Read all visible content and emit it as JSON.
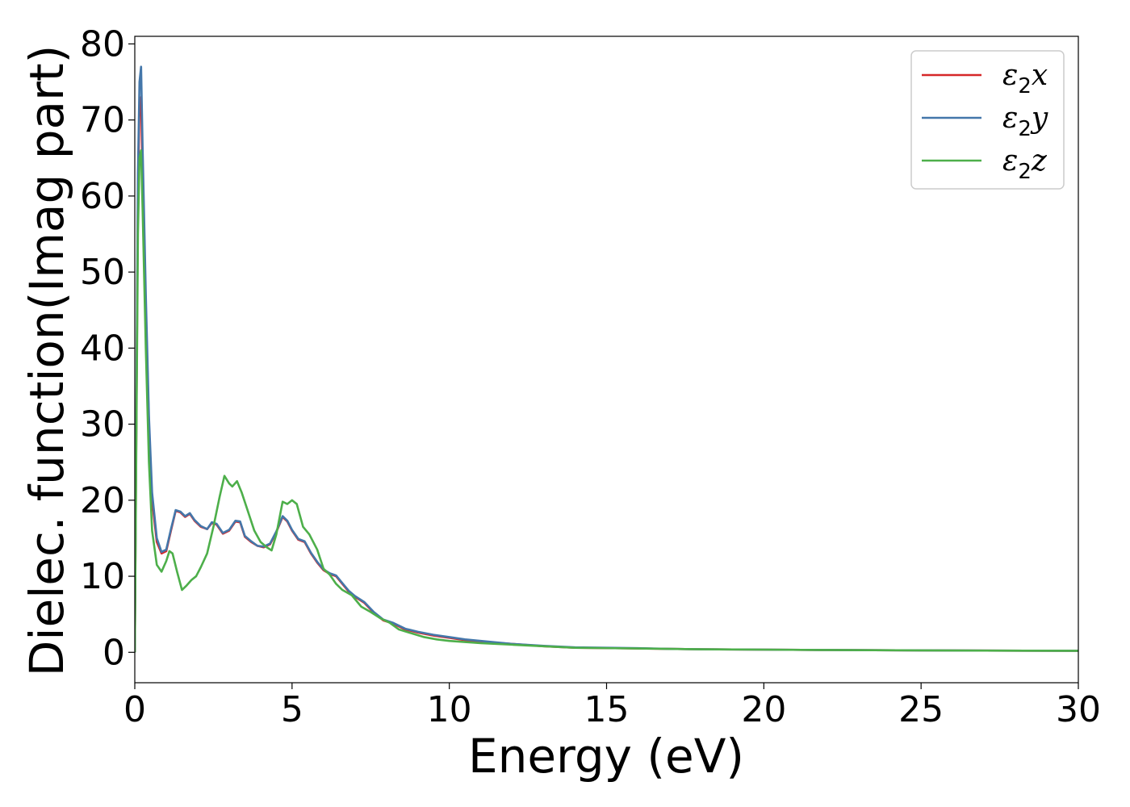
{
  "chart_data": {
    "type": "line",
    "xlabel": "Energy (eV)",
    "ylabel": "Dielec. function(Imag part)",
    "xlim": [
      0,
      30
    ],
    "ylim": [
      -4,
      81
    ],
    "xticks": [
      0,
      5,
      10,
      15,
      20,
      25,
      30
    ],
    "yticks": [
      0,
      10,
      20,
      30,
      40,
      50,
      60,
      70,
      80
    ],
    "grid": false,
    "legend_position": "top-right",
    "series": [
      {
        "name": "ε2x",
        "legend": {
          "base": "ε",
          "sub": "2",
          "var": "x"
        },
        "color": "#d62728",
        "points": [
          [
            0,
            0
          ],
          [
            0.05,
            30
          ],
          [
            0.1,
            60
          ],
          [
            0.15,
            72
          ],
          [
            0.2,
            73
          ],
          [
            0.25,
            62
          ],
          [
            0.35,
            45
          ],
          [
            0.45,
            30
          ],
          [
            0.55,
            20
          ],
          [
            0.7,
            14.5
          ],
          [
            0.85,
            13
          ],
          [
            1.0,
            13.3
          ],
          [
            1.15,
            16
          ],
          [
            1.3,
            18.6
          ],
          [
            1.45,
            18.4
          ],
          [
            1.6,
            17.8
          ],
          [
            1.75,
            18.2
          ],
          [
            1.9,
            17.3
          ],
          [
            2.1,
            16.5
          ],
          [
            2.3,
            16.2
          ],
          [
            2.45,
            17.0
          ],
          [
            2.6,
            16.8
          ],
          [
            2.8,
            15.6
          ],
          [
            3.0,
            16.0
          ],
          [
            3.2,
            17.2
          ],
          [
            3.35,
            17.1
          ],
          [
            3.5,
            15.2
          ],
          [
            3.7,
            14.5
          ],
          [
            3.9,
            14.0
          ],
          [
            4.1,
            13.8
          ],
          [
            4.3,
            14.2
          ],
          [
            4.5,
            15.8
          ],
          [
            4.7,
            17.8
          ],
          [
            4.85,
            17.2
          ],
          [
            5.0,
            16.0
          ],
          [
            5.2,
            14.8
          ],
          [
            5.4,
            14.5
          ],
          [
            5.6,
            13.0
          ],
          [
            5.8,
            11.8
          ],
          [
            6.0,
            10.8
          ],
          [
            6.2,
            10.3
          ],
          [
            6.4,
            10.0
          ],
          [
            6.6,
            9.0
          ],
          [
            6.8,
            8.0
          ],
          [
            7.0,
            7.3
          ],
          [
            7.3,
            6.5
          ],
          [
            7.6,
            5.2
          ],
          [
            7.9,
            4.2
          ],
          [
            8.2,
            3.8
          ],
          [
            8.6,
            3.0
          ],
          [
            9.0,
            2.6
          ],
          [
            9.5,
            2.2
          ],
          [
            10,
            1.9
          ],
          [
            10.5,
            1.6
          ],
          [
            11,
            1.4
          ],
          [
            12,
            1.1
          ],
          [
            13,
            0.8
          ],
          [
            14,
            0.6
          ],
          [
            15,
            0.55
          ],
          [
            16,
            0.5
          ],
          [
            17,
            0.45
          ],
          [
            18,
            0.4
          ],
          [
            20,
            0.35
          ],
          [
            22,
            0.3
          ],
          [
            25,
            0.25
          ],
          [
            27,
            0.22
          ],
          [
            30,
            0.2
          ]
        ]
      },
      {
        "name": "ε2y",
        "legend": {
          "base": "ε",
          "sub": "2",
          "var": "y"
        },
        "color": "#4477aa",
        "points": [
          [
            0,
            0
          ],
          [
            0.05,
            32
          ],
          [
            0.1,
            63
          ],
          [
            0.15,
            75
          ],
          [
            0.2,
            77
          ],
          [
            0.25,
            66
          ],
          [
            0.35,
            47
          ],
          [
            0.45,
            31
          ],
          [
            0.55,
            21
          ],
          [
            0.7,
            15
          ],
          [
            0.85,
            13.2
          ],
          [
            1.0,
            13.5
          ],
          [
            1.15,
            16.2
          ],
          [
            1.3,
            18.7
          ],
          [
            1.45,
            18.5
          ],
          [
            1.6,
            17.9
          ],
          [
            1.75,
            18.3
          ],
          [
            1.9,
            17.4
          ],
          [
            2.1,
            16.6
          ],
          [
            2.3,
            16.2
          ],
          [
            2.45,
            17.1
          ],
          [
            2.6,
            16.9
          ],
          [
            2.8,
            15.7
          ],
          [
            3.0,
            16.1
          ],
          [
            3.2,
            17.3
          ],
          [
            3.35,
            17.2
          ],
          [
            3.5,
            15.3
          ],
          [
            3.7,
            14.6
          ],
          [
            3.9,
            14.0
          ],
          [
            4.1,
            13.9
          ],
          [
            4.3,
            14.3
          ],
          [
            4.5,
            15.9
          ],
          [
            4.7,
            17.9
          ],
          [
            4.85,
            17.3
          ],
          [
            5.0,
            16.1
          ],
          [
            5.2,
            14.9
          ],
          [
            5.4,
            14.6
          ],
          [
            5.6,
            13.1
          ],
          [
            5.8,
            11.9
          ],
          [
            6.0,
            10.9
          ],
          [
            6.2,
            10.4
          ],
          [
            6.4,
            10.1
          ],
          [
            6.6,
            9.1
          ],
          [
            6.8,
            8.1
          ],
          [
            7.0,
            7.4
          ],
          [
            7.3,
            6.6
          ],
          [
            7.6,
            5.3
          ],
          [
            7.9,
            4.3
          ],
          [
            8.2,
            3.9
          ],
          [
            8.6,
            3.1
          ],
          [
            9.0,
            2.7
          ],
          [
            9.5,
            2.3
          ],
          [
            10,
            2.0
          ],
          [
            10.5,
            1.7
          ],
          [
            11,
            1.5
          ],
          [
            12,
            1.1
          ],
          [
            13,
            0.85
          ],
          [
            14,
            0.65
          ],
          [
            15,
            0.6
          ],
          [
            16,
            0.55
          ],
          [
            17,
            0.45
          ],
          [
            18,
            0.4
          ],
          [
            20,
            0.35
          ],
          [
            22,
            0.3
          ],
          [
            25,
            0.25
          ],
          [
            27,
            0.22
          ],
          [
            30,
            0.2
          ]
        ]
      },
      {
        "name": "ε2z",
        "legend": {
          "base": "ε",
          "sub": "2",
          "var": "z"
        },
        "color": "#4daf4a",
        "points": [
          [
            0,
            0
          ],
          [
            0.05,
            28
          ],
          [
            0.1,
            55
          ],
          [
            0.15,
            65
          ],
          [
            0.2,
            66
          ],
          [
            0.25,
            58
          ],
          [
            0.35,
            40
          ],
          [
            0.45,
            25
          ],
          [
            0.55,
            16
          ],
          [
            0.7,
            11.5
          ],
          [
            0.85,
            10.6
          ],
          [
            1.0,
            12.0
          ],
          [
            1.1,
            13.3
          ],
          [
            1.2,
            13.0
          ],
          [
            1.35,
            10.5
          ],
          [
            1.5,
            8.2
          ],
          [
            1.65,
            8.8
          ],
          [
            1.8,
            9.5
          ],
          [
            1.95,
            10.0
          ],
          [
            2.1,
            11.2
          ],
          [
            2.3,
            13.0
          ],
          [
            2.5,
            16.5
          ],
          [
            2.7,
            20.5
          ],
          [
            2.85,
            23.2
          ],
          [
            3.0,
            22.2
          ],
          [
            3.1,
            21.8
          ],
          [
            3.25,
            22.5
          ],
          [
            3.4,
            21.0
          ],
          [
            3.6,
            18.5
          ],
          [
            3.8,
            16.0
          ],
          [
            4.0,
            14.5
          ],
          [
            4.2,
            13.8
          ],
          [
            4.35,
            13.4
          ],
          [
            4.5,
            15.5
          ],
          [
            4.7,
            19.8
          ],
          [
            4.85,
            19.5
          ],
          [
            5.0,
            20.0
          ],
          [
            5.15,
            19.5
          ],
          [
            5.35,
            16.5
          ],
          [
            5.55,
            15.5
          ],
          [
            5.8,
            13.5
          ],
          [
            6.0,
            11.0
          ],
          [
            6.2,
            10.2
          ],
          [
            6.4,
            9.0
          ],
          [
            6.6,
            8.2
          ],
          [
            6.9,
            7.5
          ],
          [
            7.2,
            6.0
          ],
          [
            7.5,
            5.3
          ],
          [
            7.8,
            4.5
          ],
          [
            8.1,
            3.9
          ],
          [
            8.4,
            3.0
          ],
          [
            8.8,
            2.5
          ],
          [
            9.2,
            2.0
          ],
          [
            9.6,
            1.7
          ],
          [
            10,
            1.5
          ],
          [
            10.5,
            1.35
          ],
          [
            11,
            1.2
          ],
          [
            12,
            1.0
          ],
          [
            13,
            0.8
          ],
          [
            14,
            0.6
          ],
          [
            15,
            0.55
          ],
          [
            16,
            0.5
          ],
          [
            17,
            0.45
          ],
          [
            18,
            0.4
          ],
          [
            20,
            0.35
          ],
          [
            22,
            0.3
          ],
          [
            25,
            0.25
          ],
          [
            27,
            0.22
          ],
          [
            30,
            0.2
          ]
        ]
      }
    ]
  }
}
